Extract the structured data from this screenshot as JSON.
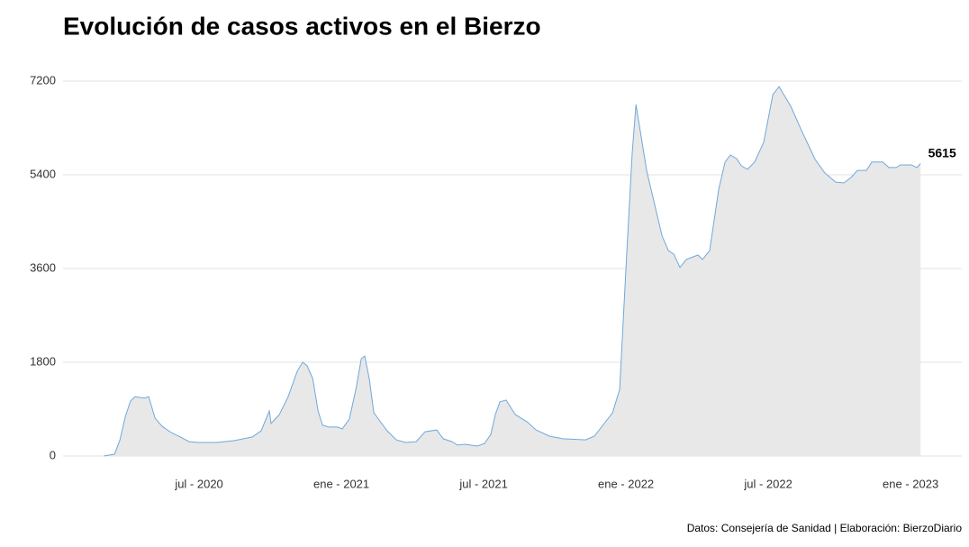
{
  "chart_data": {
    "type": "area",
    "title": "Evolución de casos activos en el Bierzo",
    "source": "Datos: Consejería de Sanidad | Elaboración: BierzoDiario",
    "line_color": "#6fa8dc",
    "fill_color": "#e8e8e8",
    "grid": true,
    "xlim": [
      2020.022,
      2023.18
    ],
    "xticks": [
      {
        "value": 2020.5,
        "label": "jul - 2020"
      },
      {
        "value": 2021.0,
        "label": "ene - 2021"
      },
      {
        "value": 2021.5,
        "label": "jul - 2021"
      },
      {
        "value": 2022.0,
        "label": "ene - 2022"
      },
      {
        "value": 2022.5,
        "label": "jul - 2022"
      },
      {
        "value": 2023.0,
        "label": "ene - 2023"
      }
    ],
    "ylim": [
      0,
      7200
    ],
    "yticks": [
      0,
      1800,
      3600,
      5400,
      7200
    ],
    "x": [
      2020.165,
      2020.203,
      2020.222,
      2020.241,
      2020.259,
      2020.275,
      2020.307,
      2020.323,
      2020.345,
      2020.37,
      2020.402,
      2020.434,
      2020.465,
      2020.497,
      2020.56,
      2020.623,
      2020.687,
      2020.718,
      2020.747,
      2020.753,
      2020.782,
      2020.813,
      2020.845,
      2020.864,
      2020.88,
      2020.899,
      2020.918,
      2020.934,
      2020.956,
      2020.987,
      2021.003,
      2021.028,
      2021.051,
      2021.07,
      2021.082,
      2021.098,
      2021.114,
      2021.13,
      2021.161,
      2021.193,
      2021.225,
      2021.263,
      2021.294,
      2021.335,
      2021.358,
      2021.389,
      2021.408,
      2021.434,
      2021.478,
      2021.503,
      2021.525,
      2021.541,
      2021.557,
      2021.579,
      2021.611,
      2021.652,
      2021.684,
      2021.731,
      2021.778,
      2021.858,
      2021.889,
      2021.921,
      2021.953,
      2021.978,
      2022.003,
      2022.022,
      2022.035,
      2022.073,
      2022.127,
      2022.149,
      2022.168,
      2022.19,
      2022.212,
      2022.253,
      2022.269,
      2022.294,
      2022.326,
      2022.348,
      2022.367,
      2022.389,
      2022.405,
      2022.427,
      2022.452,
      2022.484,
      2022.516,
      2022.538,
      2022.579,
      2022.617,
      2022.665,
      2022.699,
      2022.737,
      2022.766,
      2022.794,
      2022.813,
      2022.845,
      2022.864,
      2022.902,
      2022.924,
      2022.949,
      2022.965,
      2023.003,
      2023.022,
      2023.035
    ],
    "values": [
      0,
      35,
      310,
      760,
      1055,
      1140,
      1110,
      1140,
      730,
      570,
      450,
      365,
      275,
      260,
      260,
      295,
      365,
      485,
      865,
      625,
      795,
      1140,
      1630,
      1800,
      1730,
      1490,
      865,
      590,
      555,
      555,
      520,
      710,
      1280,
      1870,
      1920,
      1490,
      830,
      710,
      485,
      310,
      260,
      275,
      465,
      500,
      330,
      275,
      210,
      225,
      190,
      240,
      415,
      795,
      1040,
      1075,
      795,
      660,
      500,
      380,
      330,
      310,
      380,
      605,
      830,
      1280,
      3910,
      5815,
      6750,
      5470,
      4225,
      3945,
      3875,
      3620,
      3775,
      3860,
      3775,
      3945,
      5125,
      5645,
      5780,
      5710,
      5575,
      5505,
      5645,
      6025,
      6940,
      7095,
      6715,
      6250,
      5695,
      5435,
      5260,
      5245,
      5365,
      5485,
      5485,
      5645,
      5645,
      5540,
      5540,
      5590,
      5590,
      5540,
      5615
    ]
  }
}
